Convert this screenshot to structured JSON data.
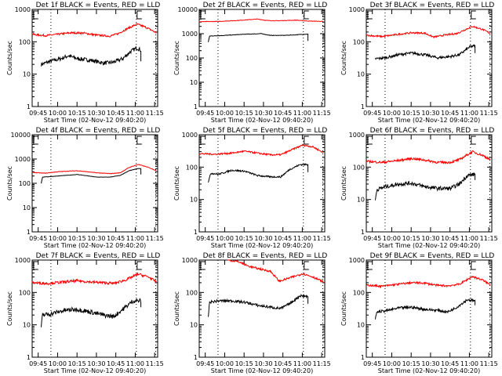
{
  "figure": {
    "background": "#ffffff"
  },
  "chart_data": [
    {
      "type": "line",
      "title": "Det 1f BLACK = Events, RED = LLD",
      "xlabel": "Start Time (02-Nov-12 09:40:20)",
      "ylabel": "Counts/sec",
      "xlim_min": [
        0,
        97
      ],
      "ylim": [
        1,
        1000
      ],
      "yticks": [
        "1",
        "10",
        "100",
        "1000"
      ],
      "xticks": [
        "09:45",
        "10:00",
        "10:15",
        "10:30",
        "10:45",
        "11:00",
        "11:15"
      ],
      "xtick_min": [
        4.67,
        19.67,
        34.67,
        49.67,
        64.67,
        79.67,
        94.67
      ],
      "vlines_min": [
        14.5,
        80.5,
        95.5
      ],
      "series": [
        {
          "name": "Events",
          "color": "#000000",
          "x_min": [
            7,
            14,
            22,
            28,
            35,
            45,
            55,
            62,
            70,
            76,
            81,
            84
          ],
          "values": [
            20,
            25,
            30,
            37,
            30,
            27,
            22,
            23,
            30,
            50,
            65,
            55
          ],
          "end_drop": 25,
          "noise": 0.12
        },
        {
          "name": "LLD",
          "color": "#ff0000",
          "x_min": [
            0,
            10,
            20,
            30,
            40,
            50,
            60,
            66,
            74,
            81,
            88,
            96
          ],
          "values": [
            170,
            155,
            170,
            190,
            185,
            160,
            150,
            175,
            260,
            350,
            280,
            190
          ],
          "noise": 0.06
        }
      ]
    },
    {
      "type": "line",
      "title": "Det 2f BLACK = Events, RED = LLD",
      "xlabel": "Start Time (02-Nov-12 09:40:20)",
      "ylabel": "Counts/sec",
      "xlim_min": [
        0,
        97
      ],
      "ylim": [
        1,
        10000
      ],
      "yticks": [
        "1",
        "10",
        "100",
        "1000",
        "10000"
      ],
      "xticks": [
        "09:45",
        "10:00",
        "10:15",
        "10:30",
        "10:45",
        "11:00",
        "11:15"
      ],
      "xtick_min": [
        4.67,
        19.67,
        34.67,
        49.67,
        64.67,
        79.67,
        94.67
      ],
      "vlines_min": [
        14.5,
        80.5,
        95.5
      ],
      "series": [
        {
          "name": "Events",
          "color": "#000000",
          "x_min": [
            7,
            8,
            20,
            35,
            48,
            55,
            65,
            75,
            81,
            84
          ],
          "values": [
            450,
            800,
            850,
            950,
            1000,
            850,
            850,
            900,
            950,
            950
          ],
          "end_drop": 500,
          "noise": 0.02
        },
        {
          "name": "LLD",
          "color": "#ff0000",
          "x_min": [
            0,
            15,
            30,
            45,
            52,
            60,
            75,
            85,
            96
          ],
          "values": [
            3100,
            3200,
            3500,
            4000,
            3500,
            3400,
            3600,
            3300,
            3200
          ],
          "noise": 0.02
        }
      ]
    },
    {
      "type": "line",
      "title": "Det 3f BLACK = Events, RED = LLD",
      "xlabel": "Start Time (02-Nov-12 09:40:20)",
      "ylabel": "Counts/sec",
      "xlim_min": [
        0,
        97
      ],
      "ylim": [
        1,
        1000
      ],
      "yticks": [
        "1",
        "10",
        "100",
        "1000"
      ],
      "xticks": [
        "09:45",
        "10:00",
        "10:15",
        "10:30",
        "10:45",
        "11:00",
        "11:15"
      ],
      "xtick_min": [
        4.67,
        19.67,
        34.67,
        49.67,
        64.67,
        79.67,
        94.67
      ],
      "vlines_min": [
        14.5,
        80.5,
        95.5
      ],
      "series": [
        {
          "name": "Events",
          "color": "#000000",
          "x_min": [
            7,
            15,
            25,
            35,
            45,
            55,
            65,
            72,
            80,
            84
          ],
          "values": [
            30,
            32,
            40,
            45,
            40,
            32,
            35,
            40,
            70,
            75
          ],
          "end_drop": 45,
          "noise": 0.08
        },
        {
          "name": "LLD",
          "color": "#ff0000",
          "x_min": [
            0,
            12,
            25,
            35,
            45,
            52,
            60,
            70,
            82,
            90,
            96
          ],
          "values": [
            160,
            145,
            170,
            190,
            185,
            140,
            160,
            180,
            300,
            240,
            180
          ],
          "noise": 0.05
        }
      ]
    },
    {
      "type": "line",
      "title": "Det 4f BLACK = Events, RED = LLD",
      "xlabel": "Start Time (02-Nov-12 09:40:20)",
      "ylabel": "Counts/sec",
      "xlim_min": [
        0,
        97
      ],
      "ylim": [
        1,
        10000
      ],
      "yticks": [
        "1",
        "10",
        "100",
        "1000",
        "10000"
      ],
      "xticks": [
        "09:45",
        "10:00",
        "10:15",
        "10:30",
        "10:45",
        "11:00",
        "11:15"
      ],
      "xtick_min": [
        4.67,
        19.67,
        34.67,
        49.67,
        64.67,
        79.67,
        94.67
      ],
      "vlines_min": [
        14.5,
        80.5,
        95.5
      ],
      "series": [
        {
          "name": "Events",
          "color": "#000000",
          "x_min": [
            7,
            8,
            20,
            35,
            50,
            60,
            68,
            75,
            81,
            84
          ],
          "values": [
            100,
            180,
            200,
            230,
            180,
            180,
            210,
            330,
            400,
            400
          ],
          "end_drop": 230,
          "noise": 0.01
        },
        {
          "name": "LLD",
          "color": "#ff0000",
          "x_min": [
            0,
            10,
            20,
            35,
            50,
            60,
            68,
            75,
            82,
            90,
            96
          ],
          "values": [
            280,
            260,
            300,
            330,
            270,
            250,
            270,
            450,
            600,
            450,
            330
          ],
          "noise": 0.02
        }
      ]
    },
    {
      "type": "line",
      "title": "Det 5f BLACK = Events, RED = LLD",
      "xlabel": "Start Time (02-Nov-12 09:40:20)",
      "ylabel": "Counts/sec",
      "xlim_min": [
        0,
        97
      ],
      "ylim": [
        1,
        1000
      ],
      "yticks": [
        "1",
        "10",
        "100",
        "1000"
      ],
      "xticks": [
        "09:45",
        "10:00",
        "10:15",
        "10:30",
        "10:45",
        "11:00",
        "11:15"
      ],
      "xtick_min": [
        4.67,
        19.67,
        34.67,
        49.67,
        64.67,
        79.67,
        94.67
      ],
      "vlines_min": [
        14.5,
        80.5,
        95.5
      ],
      "series": [
        {
          "name": "Events",
          "color": "#000000",
          "x_min": [
            7,
            9,
            15,
            25,
            35,
            45,
            55,
            63,
            70,
            78,
            84
          ],
          "values": [
            35,
            65,
            60,
            80,
            75,
            55,
            50,
            50,
            85,
            120,
            120
          ],
          "end_drop": 70,
          "noise": 0.05
        },
        {
          "name": "LLD",
          "color": "#ff0000",
          "x_min": [
            0,
            12,
            25,
            35,
            45,
            55,
            63,
            72,
            80,
            88,
            96
          ],
          "values": [
            260,
            250,
            270,
            310,
            270,
            240,
            240,
            350,
            480,
            420,
            280
          ],
          "noise": 0.05
        }
      ]
    },
    {
      "type": "line",
      "title": "Det 6f BLACK = Events, RED = LLD",
      "xlabel": "Start Time (02-Nov-12 09:40:20)",
      "ylabel": "Counts/sec",
      "xlim_min": [
        0,
        97
      ],
      "ylim": [
        1,
        1000
      ],
      "yticks": [
        "1",
        "10",
        "100",
        "1000"
      ],
      "xticks": [
        "09:45",
        "10:00",
        "10:15",
        "10:30",
        "10:45",
        "11:00",
        "11:15"
      ],
      "xtick_min": [
        4.67,
        19.67,
        34.67,
        49.67,
        64.67,
        79.67,
        94.67
      ],
      "vlines_min": [
        14.5,
        80.5,
        95.5
      ],
      "series": [
        {
          "name": "Events",
          "color": "#000000",
          "x_min": [
            7,
            8,
            15,
            25,
            35,
            45,
            55,
            65,
            72,
            78,
            84
          ],
          "values": [
            9,
            20,
            25,
            30,
            32,
            25,
            22,
            22,
            30,
            55,
            60
          ],
          "end_drop": 40,
          "noise": 0.12
        },
        {
          "name": "LLD",
          "color": "#ff0000",
          "x_min": [
            0,
            12,
            25,
            35,
            45,
            55,
            65,
            72,
            82,
            90,
            96
          ],
          "values": [
            150,
            140,
            160,
            185,
            165,
            140,
            140,
            170,
            300,
            230,
            170
          ],
          "noise": 0.07
        }
      ]
    },
    {
      "type": "line",
      "title": "Det 7f BLACK = Events, RED = LLD",
      "xlabel": "Start Time (02-Nov-12 09:40:20)",
      "ylabel": "Counts/sec",
      "xlim_min": [
        0,
        97
      ],
      "ylim": [
        1,
        1000
      ],
      "yticks": [
        "1",
        "10",
        "100",
        "1000"
      ],
      "xticks": [
        "09:45",
        "10:00",
        "10:15",
        "10:30",
        "10:45",
        "11:00",
        "11:15"
      ],
      "xtick_min": [
        4.67,
        19.67,
        34.67,
        49.67,
        64.67,
        79.67,
        94.67
      ],
      "vlines_min": [
        14.5,
        80.5,
        95.5
      ],
      "series": [
        {
          "name": "Events",
          "color": "#000000",
          "x_min": [
            7,
            8,
            15,
            25,
            35,
            45,
            55,
            63,
            70,
            78,
            84
          ],
          "values": [
            8,
            20,
            22,
            28,
            30,
            25,
            20,
            18,
            30,
            55,
            55
          ],
          "end_drop": 35,
          "noise": 0.14
        },
        {
          "name": "LLD",
          "color": "#ff0000",
          "x_min": [
            0,
            12,
            25,
            35,
            45,
            55,
            63,
            72,
            82,
            90,
            96
          ],
          "values": [
            200,
            190,
            210,
            230,
            210,
            200,
            190,
            240,
            370,
            300,
            210
          ],
          "noise": 0.08
        }
      ]
    },
    {
      "type": "line",
      "title": "Det 8f BLACK = Events, RED = LLD",
      "xlabel": "Start Time (02-Nov-12 09:40:20)",
      "ylabel": "Counts/sec",
      "xlim_min": [
        0,
        97
      ],
      "ylim": [
        1,
        1000
      ],
      "yticks": [
        "1",
        "10",
        "100",
        "1000"
      ],
      "xticks": [
        "09:45",
        "10:00",
        "10:15",
        "10:30",
        "10:45",
        "11:00",
        "11:15"
      ],
      "xtick_min": [
        4.67,
        19.67,
        34.67,
        49.67,
        64.67,
        79.67,
        94.67
      ],
      "vlines_min": [
        14.5,
        80.5,
        95.5
      ],
      "series": [
        {
          "name": "Events",
          "color": "#000000",
          "x_min": [
            7,
            8,
            15,
            25,
            35,
            45,
            55,
            63,
            70,
            78,
            84
          ],
          "values": [
            18,
            50,
            55,
            55,
            50,
            40,
            35,
            32,
            45,
            80,
            75
          ],
          "end_drop": 45,
          "noise": 0.08
        },
        {
          "name": "LLD",
          "color": "#ff0000",
          "x_min": [
            22,
            30,
            38,
            45,
            55,
            62,
            66,
            72,
            80,
            88,
            96
          ],
          "values": [
            1000,
            900,
            650,
            550,
            450,
            220,
            250,
            300,
            380,
            300,
            210
          ],
          "noise": 0.06
        }
      ]
    },
    {
      "type": "line",
      "title": "Det 9f BLACK = Events, RED = LLD",
      "xlabel": "Start Time (02-Nov-12 09:40:20)",
      "ylabel": "Counts/sec",
      "xlim_min": [
        0,
        97
      ],
      "ylim": [
        1,
        1000
      ],
      "yticks": [
        "1",
        "10",
        "100",
        "1000"
      ],
      "xticks": [
        "09:45",
        "10:00",
        "10:15",
        "10:30",
        "10:45",
        "11:00",
        "11:15"
      ],
      "xtick_min": [
        4.67,
        19.67,
        34.67,
        49.67,
        64.67,
        79.67,
        94.67
      ],
      "vlines_min": [
        14.5,
        80.5,
        95.5
      ],
      "series": [
        {
          "name": "Events",
          "color": "#000000",
          "x_min": [
            7,
            8,
            15,
            25,
            35,
            45,
            55,
            63,
            70,
            78,
            84
          ],
          "values": [
            14,
            25,
            27,
            33,
            35,
            30,
            28,
            25,
            35,
            60,
            55
          ],
          "end_drop": 40,
          "noise": 0.08
        },
        {
          "name": "LLD",
          "color": "#ff0000",
          "x_min": [
            0,
            12,
            25,
            35,
            45,
            55,
            63,
            72,
            82,
            90,
            96
          ],
          "values": [
            170,
            155,
            180,
            200,
            195,
            165,
            160,
            180,
            310,
            240,
            170
          ],
          "noise": 0.06
        }
      ]
    }
  ]
}
